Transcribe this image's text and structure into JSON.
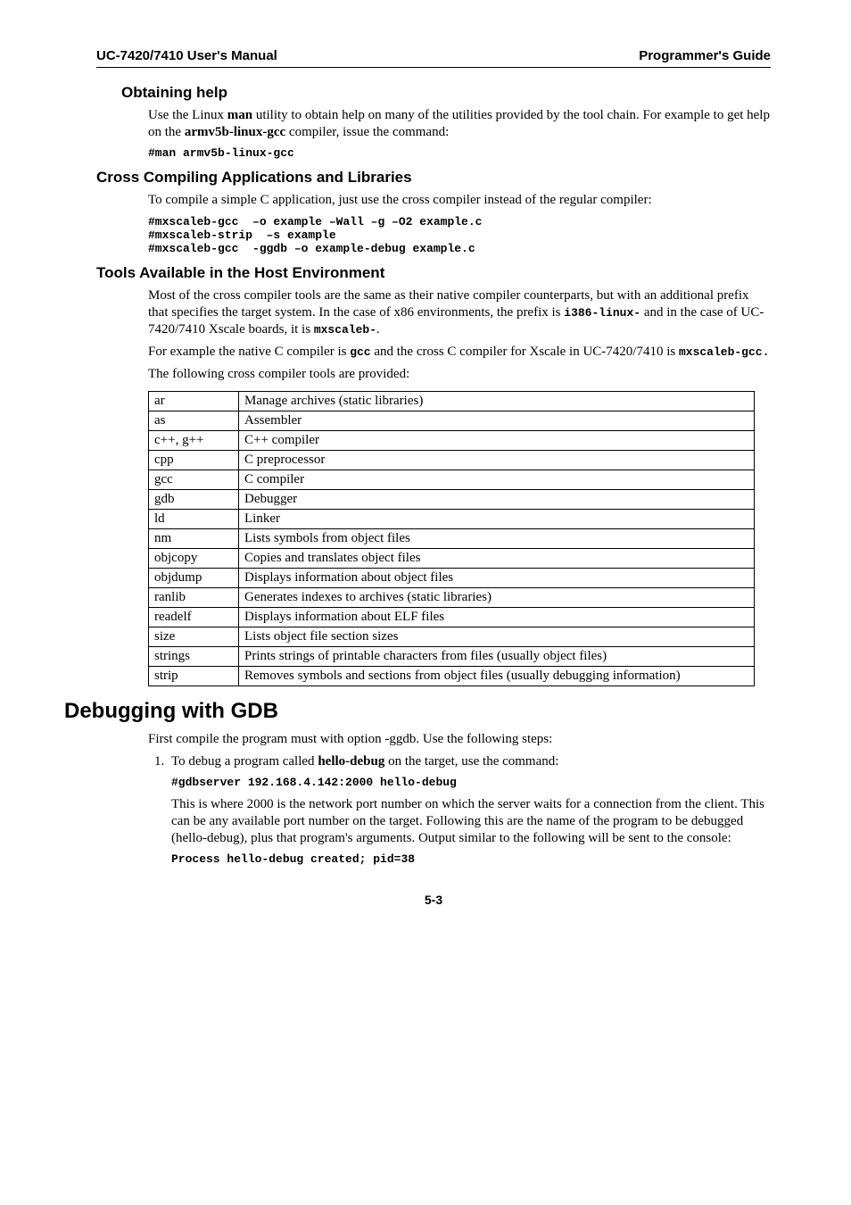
{
  "header": {
    "left": "UC-7420/7410 User's Manual",
    "right": "Programmer's Guide"
  },
  "obtaining_help": {
    "heading": "Obtaining help",
    "para": "Use the Linux <b>man</b> utility to obtain help on many of the utilities provided by the tool chain. For example to get help on the <b>armv5b-linux-gcc</b> compiler, issue the command:",
    "code": "#man armv5b-linux-gcc"
  },
  "cross_compiling": {
    "heading": "Cross Compiling Applications and Libraries",
    "para": "To compile a simple C application, just use the cross compiler instead of the regular compiler:",
    "code": "#mxscaleb-gcc  –o example –Wall –g –O2 example.c\n#mxscaleb-strip  –s example\n#mxscaleb-gcc  -ggdb –o example-debug example.c"
  },
  "tools_available": {
    "heading": "Tools Available in the Host Environment",
    "para1_pre": "Most of the cross compiler tools are the same as their native compiler counterparts, but with an additional prefix that specifies the target system. In the case of x86 environments, the prefix is ",
    "para1_code1": "i386-linux-",
    "para1_mid": " and in the case of UC-7420/7410 Xscale boards, it is ",
    "para1_code2": "mxscaleb-",
    "para1_end": ".",
    "para2_pre": "For example the native C compiler is ",
    "para2_code1": "gcc",
    "para2_mid": " and the cross C compiler for Xscale in UC-7420/7410 is ",
    "para2_code2": "mxscaleb-gcc.",
    "para3": "The following cross compiler tools are provided:",
    "rows": [
      [
        "ar",
        "Manage archives (static libraries)"
      ],
      [
        "as",
        "Assembler"
      ],
      [
        "c++, g++",
        "C++ compiler"
      ],
      [
        "cpp",
        "C preprocessor"
      ],
      [
        "gcc",
        "C compiler"
      ],
      [
        "gdb",
        "Debugger"
      ],
      [
        "ld",
        "Linker"
      ],
      [
        "nm",
        "Lists symbols from object files"
      ],
      [
        "objcopy",
        "Copies and translates object files"
      ],
      [
        "objdump",
        "Displays information about object files"
      ],
      [
        "ranlib",
        "Generates indexes to archives (static libraries)"
      ],
      [
        "readelf",
        "Displays information about ELF files"
      ],
      [
        "size",
        "Lists object file section sizes"
      ],
      [
        "strings",
        "Prints strings of printable characters from files (usually object files)"
      ],
      [
        "strip",
        "Removes symbols and sections from object files (usually debugging information)"
      ]
    ]
  },
  "debugging": {
    "heading": "Debugging with GDB",
    "intro": "First compile the program must with option -ggdb. Use the following steps:",
    "step1_lead": "To debug a program called <b>hello-debug</b> on the target, use the command:",
    "step1_code": "#gdbserver 192.168.4.142:2000 hello-debug",
    "step1_para": "This is where 2000 is the network port number on which the server waits for a connection from the client. This can be any available port number on the target. Following this are the name of the program to be debugged (hello-debug), plus that program's arguments. Output similar to the following will be sent to the console:",
    "step1_code2": "Process hello-debug created; pid=38"
  },
  "pagenum": "5-3"
}
